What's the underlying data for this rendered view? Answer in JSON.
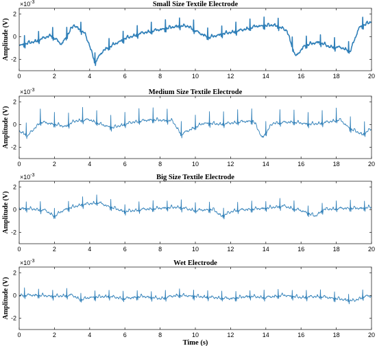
{
  "chart_data": [
    {
      "type": "line",
      "title": "Small Size Textile Electrode",
      "ylabel": "Amplitude (V)",
      "xlabel": "",
      "scale_exponent": "×10",
      "scale_power": "-3",
      "xlim": [
        0,
        20
      ],
      "ylim": [
        -3,
        2.5
      ],
      "xticks": [
        0,
        2,
        4,
        6,
        8,
        10,
        12,
        14,
        16,
        18,
        20
      ],
      "yticks": [
        -2,
        0,
        2
      ],
      "beat_times": [
        0.3,
        1.1,
        1.9,
        2.7,
        3.5,
        4.3,
        5.1,
        5.9,
        6.7,
        7.5,
        8.3,
        9.1,
        9.9,
        10.7,
        11.5,
        12.3,
        13.1,
        13.9,
        14.7,
        15.5,
        16.3,
        17.1,
        17.9,
        18.7,
        19.5
      ],
      "spike_height": 0.8,
      "baseline": [
        [
          0,
          -0.8
        ],
        [
          1,
          -0.4
        ],
        [
          1.8,
          0.1
        ],
        [
          2.4,
          -0.7
        ],
        [
          3.1,
          1.0
        ],
        [
          3.7,
          0.3
        ],
        [
          4.0,
          -0.8
        ],
        [
          4.3,
          -2.3
        ],
        [
          4.8,
          -1.2
        ],
        [
          6,
          -0.2
        ],
        [
          7,
          0.3
        ],
        [
          8,
          0.6
        ],
        [
          9,
          0.9
        ],
        [
          9.6,
          0.9
        ],
        [
          10.2,
          0.3
        ],
        [
          10.8,
          -0.1
        ],
        [
          11.5,
          0.2
        ],
        [
          12.5,
          0.5
        ],
        [
          13.5,
          0.9
        ],
        [
          14.5,
          1.0
        ],
        [
          15.2,
          0.5
        ],
        [
          15.7,
          -1.8
        ],
        [
          16.2,
          -0.8
        ],
        [
          17,
          -0.5
        ],
        [
          17.6,
          -0.9
        ],
        [
          18.3,
          -1.0
        ],
        [
          18.8,
          -1.3
        ],
        [
          19.3,
          0.8
        ],
        [
          20,
          1.3
        ]
      ],
      "color": "#2f7fb8",
      "line_width": 1.6
    },
    {
      "type": "line",
      "title": "Medium Size Textile Electrode",
      "ylabel": "Amplitude (V)",
      "xlabel": "",
      "scale_exponent": "×10",
      "scale_power": "-3",
      "xlim": [
        0,
        20
      ],
      "ylim": [
        -3,
        2.5
      ],
      "xticks": [
        0,
        2,
        4,
        6,
        8,
        10,
        12,
        14,
        16,
        18,
        20
      ],
      "yticks": [
        -2,
        0,
        2
      ],
      "beat_times": [
        0.4,
        1.2,
        2.0,
        2.8,
        3.6,
        4.4,
        5.2,
        6.0,
        6.8,
        7.6,
        8.4,
        9.2,
        10.0,
        10.8,
        11.6,
        12.4,
        13.2,
        14.0,
        14.8,
        15.6,
        16.4,
        17.2,
        18.0,
        18.8,
        19.6
      ],
      "spike_height": 1.1,
      "baseline": [
        [
          0,
          -0.6
        ],
        [
          0.5,
          -1.0
        ],
        [
          1.2,
          0.2
        ],
        [
          2,
          0.0
        ],
        [
          2.6,
          -0.2
        ],
        [
          3.2,
          0.3
        ],
        [
          4,
          0.4
        ],
        [
          4.6,
          0.0
        ],
        [
          5.3,
          -0.3
        ],
        [
          6.5,
          0.2
        ],
        [
          7.5,
          0.4
        ],
        [
          8.7,
          0.3
        ],
        [
          9.2,
          -0.9
        ],
        [
          9.8,
          -0.4
        ],
        [
          10.5,
          0.1
        ],
        [
          11.5,
          0.0
        ],
        [
          12.5,
          0.2
        ],
        [
          13.3,
          0.3
        ],
        [
          13.8,
          -1.2
        ],
        [
          14.4,
          0.1
        ],
        [
          15.5,
          0.2
        ],
        [
          16.5,
          0.0
        ],
        [
          17.2,
          0.1
        ],
        [
          18.2,
          0.4
        ],
        [
          18.8,
          -0.4
        ],
        [
          19.5,
          -0.9
        ],
        [
          20,
          -0.4
        ]
      ],
      "color": "#2f7fb8",
      "line_width": 0.9
    },
    {
      "type": "line",
      "title": "Big Size Textile Electrode",
      "ylabel": "Amplitude (V)",
      "xlabel": "",
      "scale_exponent": "×10",
      "scale_power": "-3",
      "xlim": [
        0,
        20
      ],
      "ylim": [
        -3,
        2.5
      ],
      "xticks": [
        0,
        2,
        4,
        6,
        8,
        10,
        12,
        14,
        16,
        18,
        20
      ],
      "yticks": [
        -2,
        0,
        2
      ],
      "beat_times": [
        0.4,
        1.2,
        2.0,
        2.8,
        3.6,
        4.4,
        5.2,
        6.0,
        6.8,
        7.6,
        8.4,
        9.2,
        10.0,
        10.8,
        11.6,
        12.4,
        13.2,
        14.0,
        14.8,
        15.6,
        16.4,
        17.2,
        18.0,
        18.8,
        19.6
      ],
      "spike_height": 0.7,
      "baseline": [
        [
          0,
          0.1
        ],
        [
          1,
          0.0
        ],
        [
          1.5,
          -0.1
        ],
        [
          2,
          -0.6
        ],
        [
          2.6,
          0.0
        ],
        [
          3.5,
          0.4
        ],
        [
          4.5,
          0.6
        ],
        [
          5,
          0.3
        ],
        [
          6,
          -0.2
        ],
        [
          7,
          0.0
        ],
        [
          8,
          0.1
        ],
        [
          9,
          0.2
        ],
        [
          10,
          -0.1
        ],
        [
          11,
          0.0
        ],
        [
          11.5,
          -0.6
        ],
        [
          12.2,
          -0.1
        ],
        [
          13,
          0.0
        ],
        [
          14,
          0.1
        ],
        [
          15,
          0.3
        ],
        [
          16.2,
          -0.2
        ],
        [
          16.8,
          -0.6
        ],
        [
          17.3,
          0.0
        ],
        [
          18.5,
          0.1
        ],
        [
          19.5,
          0.1
        ],
        [
          20,
          0.2
        ]
      ],
      "color": "#2f7fb8",
      "line_width": 0.9
    },
    {
      "type": "line",
      "title": "Wet Electrode",
      "ylabel": "Amplitude (V)",
      "xlabel": "Time (s)",
      "scale_exponent": "×10",
      "scale_power": "-3",
      "xlim": [
        0,
        20
      ],
      "ylim": [
        -3,
        2.5
      ],
      "xticks": [
        0,
        2,
        4,
        6,
        8,
        10,
        12,
        14,
        16,
        18,
        20
      ],
      "yticks": [
        -2,
        0,
        2
      ],
      "beat_times": [
        0.3,
        1.1,
        1.9,
        2.7,
        3.5,
        4.3,
        5.1,
        5.9,
        6.7,
        7.5,
        8.3,
        9.1,
        9.9,
        10.7,
        11.5,
        12.3,
        13.1,
        13.9,
        14.7,
        15.5,
        16.3,
        17.1,
        17.9,
        18.7,
        19.5
      ],
      "spike_height": 0.6,
      "baseline": [
        [
          0,
          0.0
        ],
        [
          1,
          0.0
        ],
        [
          2,
          -0.1
        ],
        [
          3,
          0.0
        ],
        [
          3.5,
          -0.4
        ],
        [
          4,
          -0.2
        ],
        [
          5,
          -0.1
        ],
        [
          6,
          -0.3
        ],
        [
          7,
          -0.1
        ],
        [
          8,
          -0.3
        ],
        [
          9,
          0.0
        ],
        [
          10,
          -0.1
        ],
        [
          11,
          -0.2
        ],
        [
          12,
          -0.3
        ],
        [
          13,
          -0.1
        ],
        [
          14,
          -0.2
        ],
        [
          15,
          0.0
        ],
        [
          16,
          -0.2
        ],
        [
          17,
          -0.1
        ],
        [
          18,
          -0.3
        ],
        [
          19,
          -0.5
        ],
        [
          19.6,
          -0.1
        ],
        [
          20,
          -0.1
        ]
      ],
      "color": "#2f7fb8",
      "line_width": 0.9
    }
  ]
}
